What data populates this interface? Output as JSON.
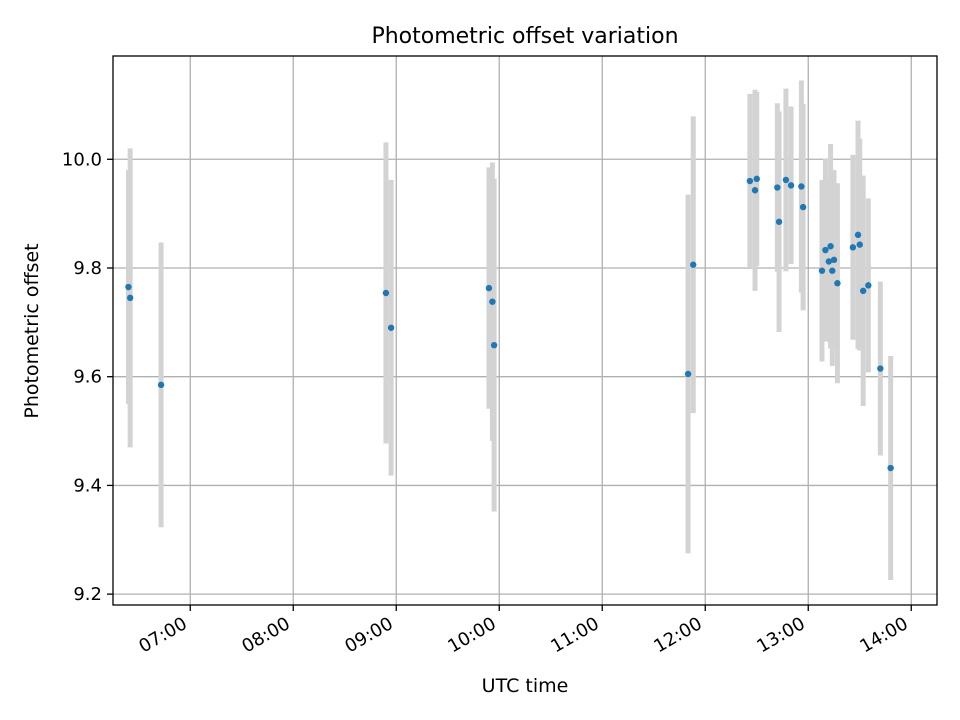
{
  "chart_data": {
    "type": "scatter",
    "title": "Photometric offset variation",
    "xlabel": "UTC time",
    "ylabel": "Photometric offset",
    "xlim": [
      "06:15",
      "14:15"
    ],
    "ylim": [
      9.18,
      10.19
    ],
    "x_ticks": [
      "07:00",
      "08:00",
      "09:00",
      "10:00",
      "11:00",
      "12:00",
      "13:00",
      "14:00"
    ],
    "y_ticks": [
      9.2,
      9.4,
      9.6,
      9.8,
      10.0
    ],
    "grid": true,
    "colors": {
      "point": "#1f77b4",
      "errorbar": "#d3d3d3",
      "grid": "#b0b0b0"
    },
    "points": [
      {
        "x": "06:24",
        "y": 9.765,
        "err": 0.215
      },
      {
        "x": "06:25",
        "y": 9.745,
        "err": 0.275
      },
      {
        "x": "06:43",
        "y": 9.585,
        "err": 0.262
      },
      {
        "x": "08:54",
        "y": 9.754,
        "err": 0.277
      },
      {
        "x": "08:57",
        "y": 9.69,
        "err": 0.272
      },
      {
        "x": "09:54",
        "y": 9.763,
        "err": 0.222
      },
      {
        "x": "09:56",
        "y": 9.738,
        "err": 0.256
      },
      {
        "x": "09:57",
        "y": 9.658,
        "err": 0.306
      },
      {
        "x": "11:50",
        "y": 9.605,
        "err": 0.33
      },
      {
        "x": "11:53",
        "y": 9.806,
        "err": 0.273
      },
      {
        "x": "12:26",
        "y": 9.96,
        "err": 0.16
      },
      {
        "x": "12:29",
        "y": 9.943,
        "err": 0.185
      },
      {
        "x": "12:30",
        "y": 9.964,
        "err": 0.16
      },
      {
        "x": "12:42",
        "y": 9.948,
        "err": 0.155
      },
      {
        "x": "12:43",
        "y": 9.885,
        "err": 0.203
      },
      {
        "x": "12:47",
        "y": 9.962,
        "err": 0.168
      },
      {
        "x": "12:50",
        "y": 9.952,
        "err": 0.145
      },
      {
        "x": "12:56",
        "y": 9.95,
        "err": 0.195
      },
      {
        "x": "12:57",
        "y": 9.912,
        "err": 0.19
      },
      {
        "x": "13:08",
        "y": 9.795,
        "err": 0.167
      },
      {
        "x": "13:10",
        "y": 9.833,
        "err": 0.168
      },
      {
        "x": "13:12",
        "y": 9.812,
        "err": 0.148
      },
      {
        "x": "13:13",
        "y": 9.84,
        "err": 0.188
      },
      {
        "x": "13:14",
        "y": 9.795,
        "err": 0.175
      },
      {
        "x": "13:15",
        "y": 9.815,
        "err": 0.165
      },
      {
        "x": "13:17",
        "y": 9.772,
        "err": 0.184
      },
      {
        "x": "13:26",
        "y": 9.838,
        "err": 0.17
      },
      {
        "x": "13:29",
        "y": 9.861,
        "err": 0.21
      },
      {
        "x": "13:30",
        "y": 9.843,
        "err": 0.195
      },
      {
        "x": "13:32",
        "y": 9.758,
        "err": 0.212
      },
      {
        "x": "13:35",
        "y": 9.768,
        "err": 0.16
      },
      {
        "x": "13:42",
        "y": 9.615,
        "err": 0.16
      },
      {
        "x": "13:48",
        "y": 9.432,
        "err": 0.206
      }
    ]
  }
}
